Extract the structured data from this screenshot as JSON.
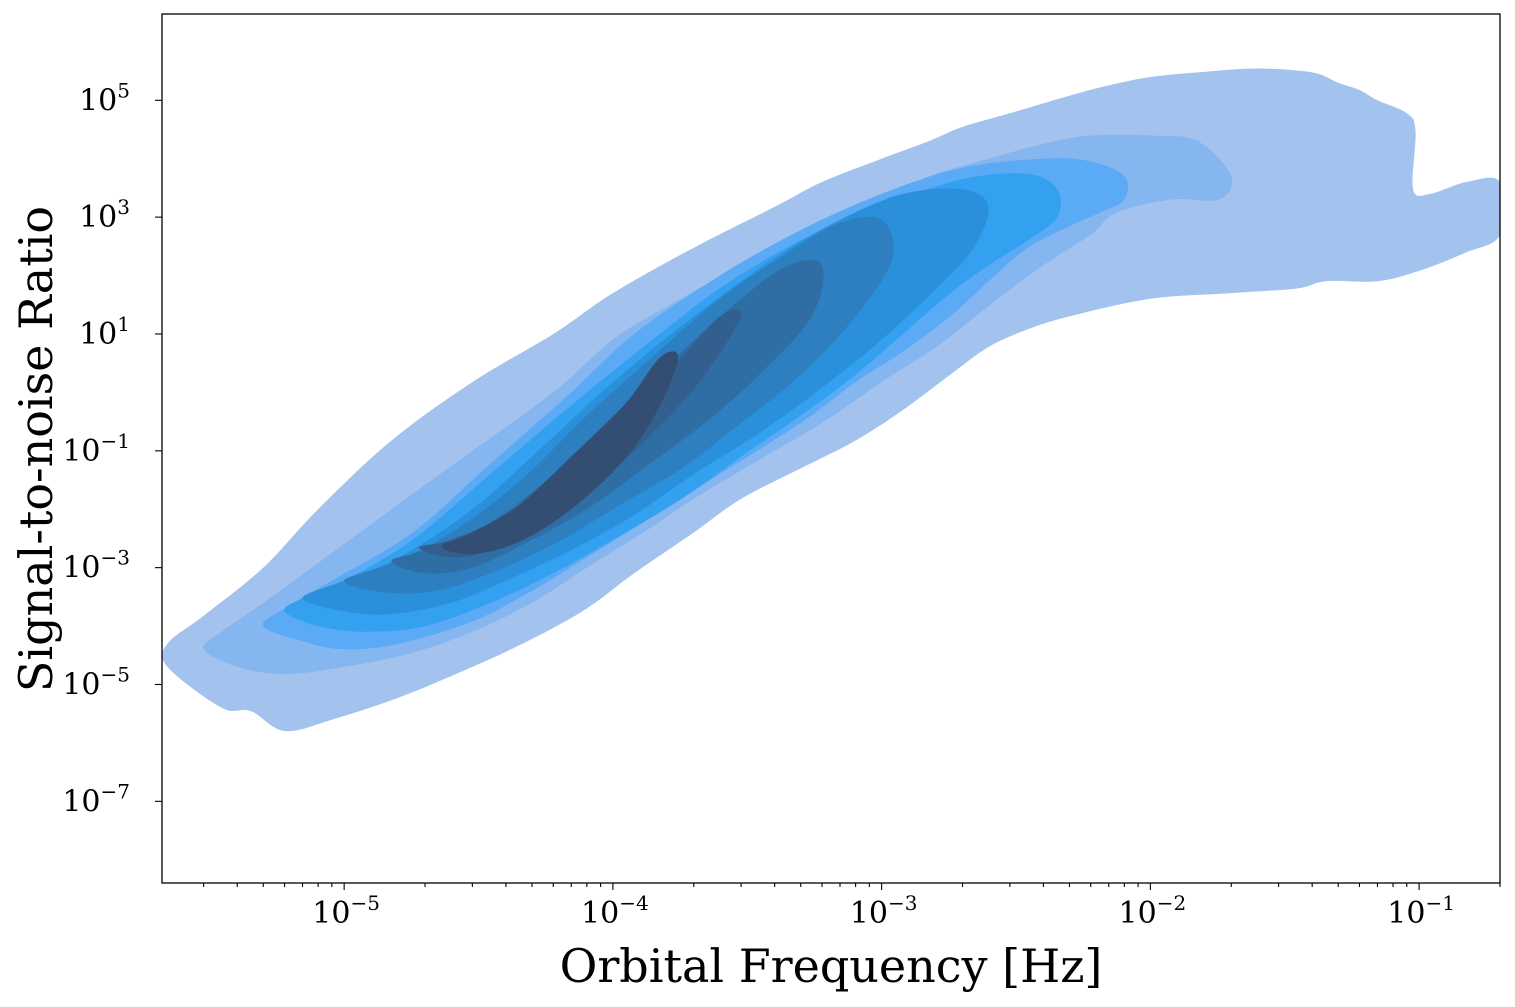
{
  "chart_data": {
    "type": "kde_contour",
    "title": "",
    "xlabel": "Orbital Frequency [Hz]",
    "ylabel": "Signal-to-noise Ratio",
    "xscale": "log",
    "yscale": "log",
    "xlim": [
      2.1e-06,
      0.2
    ],
    "ylim": [
      4e-09,
      3000000.0
    ],
    "x_ticks": [
      {
        "value": 1e-05,
        "base": "10",
        "exp": "−5"
      },
      {
        "value": 0.0001,
        "base": "10",
        "exp": "−4"
      },
      {
        "value": 0.001,
        "base": "10",
        "exp": "−3"
      },
      {
        "value": 0.01,
        "base": "10",
        "exp": "−2"
      },
      {
        "value": 0.1,
        "base": "10",
        "exp": "−1"
      }
    ],
    "y_ticks": [
      {
        "value": 1e-07,
        "base": "10",
        "exp": "−7"
      },
      {
        "value": 1e-05,
        "base": "10",
        "exp": "−5"
      },
      {
        "value": 0.001,
        "base": "10",
        "exp": "−3"
      },
      {
        "value": 0.1,
        "base": "10",
        "exp": "−1"
      },
      {
        "value": 10.0,
        "base": "10",
        "exp": "1"
      },
      {
        "value": 1000.0,
        "base": "10",
        "exp": "3"
      },
      {
        "value": 100000.0,
        "base": "10",
        "exp": "5"
      }
    ],
    "grid": false,
    "legend": "none",
    "contour_colors": [
      "#a3c3ee",
      "#86b6f0",
      "#5aaaf5",
      "#34a0f0",
      "#2a90dc",
      "#2d7fc0",
      "#2f6ea5",
      "#335f8e",
      "#344e73"
    ],
    "levels": [
      {
        "level": 1,
        "points": [
          [
            2.2e-06,
            2e-05
          ],
          [
            3.5e-06,
            4e-06
          ],
          [
            4.5e-06,
            3.5e-06
          ],
          [
            6e-06,
            1.6e-06
          ],
          [
            9e-06,
            2.5e-06
          ],
          [
            1.6e-05,
            6e-06
          ],
          [
            3e-05,
            2e-05
          ],
          [
            5e-05,
            6e-05
          ],
          [
            8e-05,
            0.0002
          ],
          [
            0.00012,
            0.0008
          ],
          [
            0.0002,
            0.004
          ],
          [
            0.0003,
            0.015
          ],
          [
            0.0005,
            0.05
          ],
          [
            0.0008,
            0.15
          ],
          [
            0.0012,
            0.5
          ],
          [
            0.0018,
            2
          ],
          [
            0.0025,
            6
          ],
          [
            0.0035,
            12
          ],
          [
            0.005,
            20
          ],
          [
            0.01,
            40
          ],
          [
            0.02,
            50
          ],
          [
            0.035,
            60
          ],
          [
            0.045,
            80
          ],
          [
            0.07,
            80
          ],
          [
            0.1,
            120
          ],
          [
            0.15,
            250
          ],
          [
            0.2,
            500
          ],
          [
            0.2,
            4000
          ],
          [
            0.15,
            4000
          ],
          [
            0.11,
            2500
          ],
          [
            0.095,
            3000
          ],
          [
            0.097,
            30000
          ],
          [
            0.09,
            60000
          ],
          [
            0.07,
            100000
          ],
          [
            0.06,
            150000
          ],
          [
            0.05,
            200000
          ],
          [
            0.04,
            300000
          ],
          [
            0.025,
            350000
          ],
          [
            0.015,
            300000
          ],
          [
            0.01,
            250000
          ],
          [
            0.007,
            180000
          ],
          [
            0.005,
            120000
          ],
          [
            0.003,
            60000
          ],
          [
            0.002,
            35000
          ],
          [
            0.0015,
            20000
          ],
          [
            0.001,
            10000
          ],
          [
            0.0006,
            4000
          ],
          [
            0.0004,
            1500
          ],
          [
            0.0002,
            300
          ],
          [
            0.0001,
            50
          ],
          [
            6e-05,
            10
          ],
          [
            3e-05,
            1.5
          ],
          [
            1.5e-05,
            0.15
          ],
          [
            8e-06,
            0.01
          ],
          [
            5e-06,
            0.001
          ],
          [
            3e-06,
            0.00015
          ],
          [
            2.2e-06,
            5e-05
          ]
        ]
      },
      {
        "level": 2,
        "points": [
          [
            3e-06,
            4e-05
          ],
          [
            4e-06,
            2e-05
          ],
          [
            6e-06,
            1.5e-05
          ],
          [
            1e-05,
            2e-05
          ],
          [
            1.8e-05,
            3.5e-05
          ],
          [
            3e-05,
            8e-05
          ],
          [
            5e-05,
            0.00025
          ],
          [
            8e-05,
            0.001
          ],
          [
            0.00013,
            0.004
          ],
          [
            0.0002,
            0.015
          ],
          [
            0.00035,
            0.07
          ],
          [
            0.0006,
            0.3
          ],
          [
            0.001,
            1.5
          ],
          [
            0.0016,
            6
          ],
          [
            0.0025,
            30
          ],
          [
            0.004,
            150
          ],
          [
            0.006,
            500
          ],
          [
            0.0075,
            1200
          ],
          [
            0.012,
            2000
          ],
          [
            0.018,
            2000
          ],
          [
            0.02,
            5000
          ],
          [
            0.015,
            20000
          ],
          [
            0.01,
            25000
          ],
          [
            0.006,
            25000
          ],
          [
            0.004,
            18000
          ],
          [
            0.0025,
            10000
          ],
          [
            0.0015,
            5000
          ],
          [
            0.001,
            2000
          ],
          [
            0.0005,
            500
          ],
          [
            0.0003,
            150
          ],
          [
            0.00016,
            30
          ],
          [
            0.0001,
            8
          ],
          [
            6e-05,
            1
          ],
          [
            3e-05,
            0.1
          ],
          [
            1.5e-05,
            0.01
          ],
          [
            8e-06,
            0.0012
          ],
          [
            5e-06,
            0.00025
          ],
          [
            3.5e-06,
            8e-05
          ]
        ]
      },
      {
        "level": 3,
        "points": [
          [
            5e-06,
            0.0001
          ],
          [
            7e-06,
            5.5e-05
          ],
          [
            1e-05,
            4e-05
          ],
          [
            1.6e-05,
            5e-05
          ],
          [
            3e-05,
            0.00012
          ],
          [
            5e-05,
            0.0004
          ],
          [
            8e-05,
            0.0015
          ],
          [
            0.00013,
            0.006
          ],
          [
            0.00025,
            0.04
          ],
          [
            0.0005,
            0.3
          ],
          [
            0.0008,
            1.5
          ],
          [
            0.0012,
            5
          ],
          [
            0.0018,
            20
          ],
          [
            0.0025,
            80
          ],
          [
            0.0035,
            300
          ],
          [
            0.005,
            700
          ],
          [
            0.0065,
            1200
          ],
          [
            0.008,
            2000
          ],
          [
            0.008,
            5000
          ],
          [
            0.006,
            9000
          ],
          [
            0.004,
            10000
          ],
          [
            0.002,
            7000
          ],
          [
            0.001,
            2500
          ],
          [
            0.0005,
            600
          ],
          [
            0.00025,
            100
          ],
          [
            0.00012,
            10
          ],
          [
            7e-05,
            1
          ],
          [
            3.5e-05,
            0.06
          ],
          [
            1.8e-05,
            0.004
          ],
          [
            9e-06,
            0.0006
          ],
          [
            6e-06,
            0.0002
          ]
        ]
      },
      {
        "level": 4,
        "points": [
          [
            6e-06,
            0.00018
          ],
          [
            8e-06,
            0.0001
          ],
          [
            1.2e-05,
            8e-05
          ],
          [
            2e-05,
            0.0001
          ],
          [
            3.5e-05,
            0.00025
          ],
          [
            6e-05,
            0.0008
          ],
          [
            0.0001,
            0.003
          ],
          [
            0.00018,
            0.015
          ],
          [
            0.0003,
            0.08
          ],
          [
            0.0005,
            0.4
          ],
          [
            0.0008,
            2
          ],
          [
            0.0012,
            10
          ],
          [
            0.0018,
            50
          ],
          [
            0.0025,
            150
          ],
          [
            0.0035,
            400
          ],
          [
            0.0045,
            1000
          ],
          [
            0.0045,
            3000
          ],
          [
            0.0035,
            5500
          ],
          [
            0.002,
            4500
          ],
          [
            0.001,
            1500
          ],
          [
            0.0005,
            400
          ],
          [
            0.00025,
            60
          ],
          [
            0.00013,
            6
          ],
          [
            7e-05,
            0.6
          ],
          [
            3.5e-05,
            0.04
          ],
          [
            1.8e-05,
            0.003
          ],
          [
            1e-05,
            0.0006
          ],
          [
            7e-06,
            0.0003
          ]
        ]
      },
      {
        "level": 5,
        "points": [
          [
            7e-06,
            0.0003
          ],
          [
            1e-05,
            0.00018
          ],
          [
            1.5e-05,
            0.00016
          ],
          [
            2.5e-05,
            0.00025
          ],
          [
            4e-05,
            0.0006
          ],
          [
            7e-05,
            0.002
          ],
          [
            0.00012,
            0.008
          ],
          [
            0.0002,
            0.04
          ],
          [
            0.00035,
            0.2
          ],
          [
            0.0006,
            1.2
          ],
          [
            0.001,
            8
          ],
          [
            0.0016,
            60
          ],
          [
            0.0022,
            300
          ],
          [
            0.0025,
            1500
          ],
          [
            0.002,
            3000
          ],
          [
            0.0012,
            2500
          ],
          [
            0.0007,
            900
          ],
          [
            0.0004,
            200
          ],
          [
            0.0002,
            20
          ],
          [
            0.0001,
            1.5
          ],
          [
            5.5e-05,
            0.12
          ],
          [
            3e-05,
            0.01
          ],
          [
            1.6e-05,
            0.0015
          ],
          [
            1e-05,
            0.0006
          ]
        ]
      },
      {
        "level": 6,
        "points": [
          [
            1e-05,
            0.0006
          ],
          [
            1.4e-05,
            0.00038
          ],
          [
            2.2e-05,
            0.0004
          ],
          [
            3.5e-05,
            0.0008
          ],
          [
            6e-05,
            0.0025
          ],
          [
            0.0001,
            0.01
          ],
          [
            0.00018,
            0.05
          ],
          [
            0.0003,
            0.3
          ],
          [
            0.0005,
            2
          ],
          [
            0.0008,
            20
          ],
          [
            0.0011,
            200
          ],
          [
            0.001,
            900
          ],
          [
            0.0007,
            800
          ],
          [
            0.00045,
            250
          ],
          [
            0.00025,
            40
          ],
          [
            0.00014,
            4
          ],
          [
            8e-05,
            0.4
          ],
          [
            4.5e-05,
            0.03
          ],
          [
            2.5e-05,
            0.004
          ],
          [
            1.5e-05,
            0.0012
          ]
        ]
      },
      {
        "level": 7,
        "points": [
          [
            1.5e-05,
            0.0013
          ],
          [
            2e-05,
            0.0008
          ],
          [
            3e-05,
            0.001
          ],
          [
            5e-05,
            0.003
          ],
          [
            8e-05,
            0.01
          ],
          [
            0.00013,
            0.05
          ],
          [
            0.00022,
            0.3
          ],
          [
            0.00035,
            2
          ],
          [
            0.00055,
            20
          ],
          [
            0.0006,
            150
          ],
          [
            0.00045,
            150
          ],
          [
            0.0003,
            40
          ],
          [
            0.00018,
            5
          ],
          [
            0.0001,
            0.4
          ],
          [
            6e-05,
            0.04
          ],
          [
            3.5e-05,
            0.006
          ],
          [
            2e-05,
            0.002
          ]
        ]
      },
      {
        "level": 8,
        "points": [
          [
            1.9e-05,
            0.0022
          ],
          [
            2.5e-05,
            0.0015
          ],
          [
            3.5e-05,
            0.002
          ],
          [
            5.5e-05,
            0.006
          ],
          [
            9e-05,
            0.03
          ],
          [
            0.00014,
            0.2
          ],
          [
            0.00021,
            1.5
          ],
          [
            0.0003,
            20
          ],
          [
            0.00025,
            20
          ],
          [
            0.00017,
            3
          ],
          [
            0.00011,
            0.4
          ],
          [
            7e-05,
            0.06
          ],
          [
            4e-05,
            0.008
          ],
          [
            2.5e-05,
            0.003
          ]
        ]
      },
      {
        "level": 9,
        "points": [
          [
            2.3e-05,
            0.0023
          ],
          [
            3e-05,
            0.0017
          ],
          [
            4.5e-05,
            0.0028
          ],
          [
            7e-05,
            0.01
          ],
          [
            0.00011,
            0.07
          ],
          [
            0.00015,
            0.6
          ],
          [
            0.000175,
            4
          ],
          [
            0.00015,
            4
          ],
          [
            0.00011,
            0.6
          ],
          [
            7e-05,
            0.08
          ],
          [
            4.5e-05,
            0.012
          ],
          [
            3e-05,
            0.004
          ]
        ]
      }
    ]
  }
}
